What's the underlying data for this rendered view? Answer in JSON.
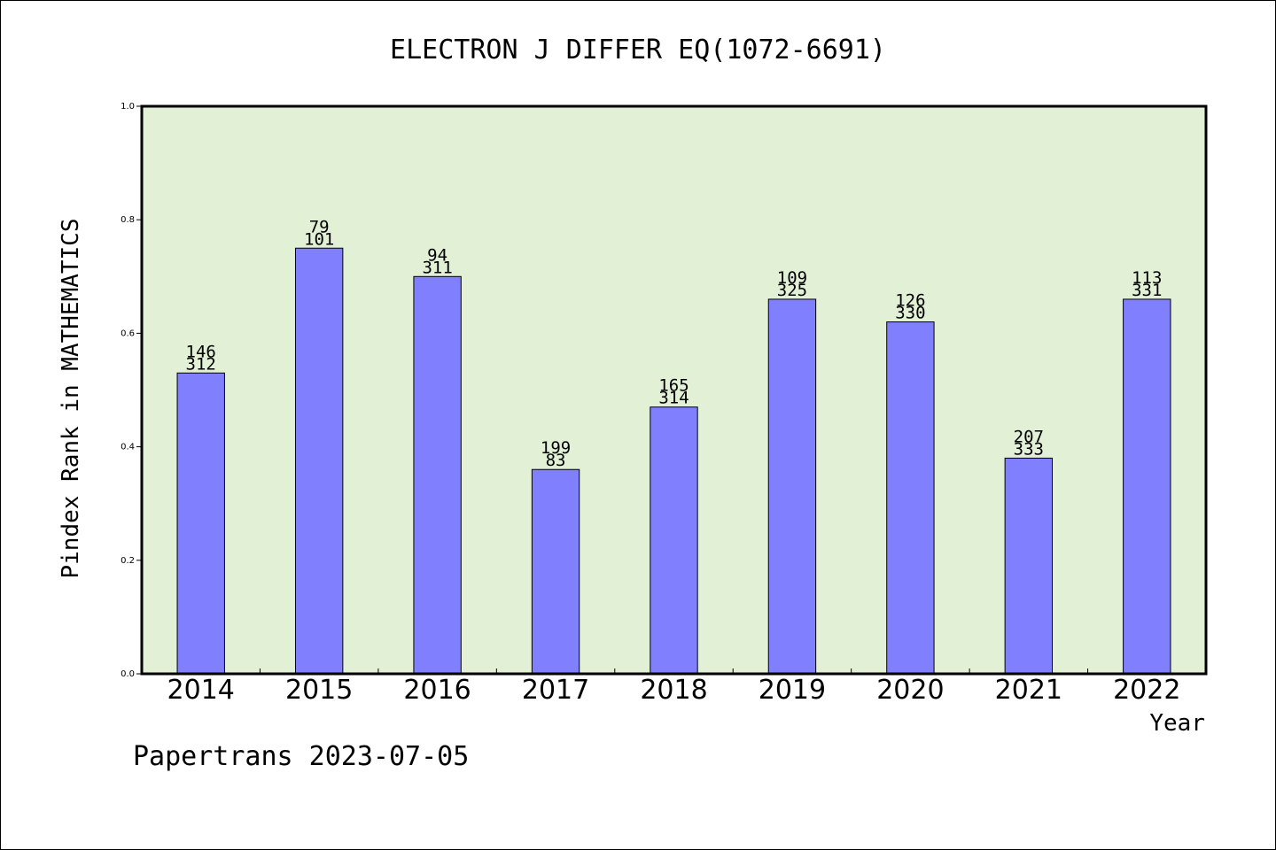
{
  "chart_data": {
    "type": "bar",
    "title": "ELECTRON J DIFFER EQ(1072-6691)",
    "xlabel": "Year",
    "ylabel": "Pindex Rank in MATHEMATICS",
    "footer": "Papertrans 2023-07-05",
    "categories": [
      "2014",
      "2015",
      "2016",
      "2017",
      "2018",
      "2019",
      "2020",
      "2021",
      "2022"
    ],
    "values": [
      0.53,
      0.75,
      0.7,
      0.36,
      0.47,
      0.66,
      0.62,
      0.38,
      0.66
    ],
    "label_top": [
      "146",
      "79",
      "94",
      "199",
      "165",
      "109",
      "126",
      "207",
      "113"
    ],
    "label_bottom": [
      "312",
      "101",
      "311",
      "83",
      "314",
      "325",
      "330",
      "333",
      "331"
    ],
    "ylim": [
      0,
      1.0
    ],
    "yticks": [
      "0.0",
      "0.2",
      "0.4",
      "0.6",
      "0.8",
      "1.0"
    ],
    "grid": false,
    "colors": {
      "plot_background": "#e2f0d6",
      "bar_fill": "#8080ff",
      "bar_stroke": "#000000"
    }
  }
}
